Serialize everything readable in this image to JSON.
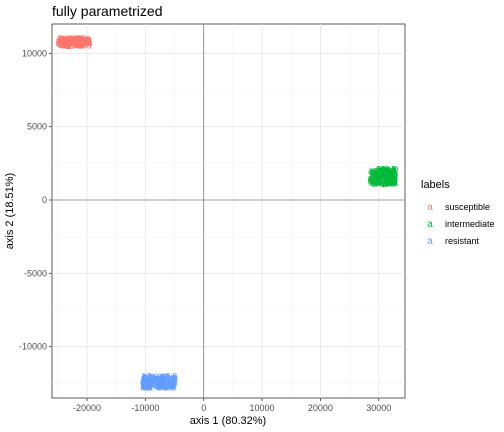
{
  "chart_data": {
    "type": "scatter",
    "title": "fully parametrized",
    "xlabel": "axis 1 (80.32%)",
    "ylabel": "axis 2 (18.51%)",
    "xlim": [
      -26000,
      34500
    ],
    "ylim": [
      -13500,
      12000
    ],
    "x_ticks": [
      -20000,
      -10000,
      0,
      10000,
      20000,
      30000
    ],
    "x_tick_labels": [
      "-20000",
      "-10000",
      "0",
      "10000",
      "20000",
      "30000"
    ],
    "y_ticks": [
      -10000,
      -5000,
      0,
      5000,
      10000
    ],
    "y_tick_labels": [
      "-10000",
      "-5000",
      "0",
      "5000",
      "10000"
    ],
    "grid": true,
    "reference_lines": {
      "x": 0,
      "y": 0
    },
    "point_glyph": "a",
    "legend": {
      "title": "labels",
      "position": "right",
      "entries": [
        "susceptible",
        "intermediate",
        "resistant"
      ]
    },
    "series": [
      {
        "name": "susceptible",
        "color": "#F8766D",
        "clusters": [
          {
            "x_range": [
              -25000,
              -19500
            ],
            "y_range": [
              10500,
              11100
            ]
          }
        ]
      },
      {
        "name": "intermediate",
        "color": "#00BA38",
        "clusters": [
          {
            "x_range": [
              28500,
              33000
            ],
            "y_range": [
              1100,
              2200
            ]
          }
        ]
      },
      {
        "name": "resistant",
        "color": "#619CFF",
        "clusters": [
          {
            "x_range": [
              -10500,
              -4800
            ],
            "y_range": [
              -12800,
              -11900
            ]
          }
        ]
      }
    ]
  }
}
